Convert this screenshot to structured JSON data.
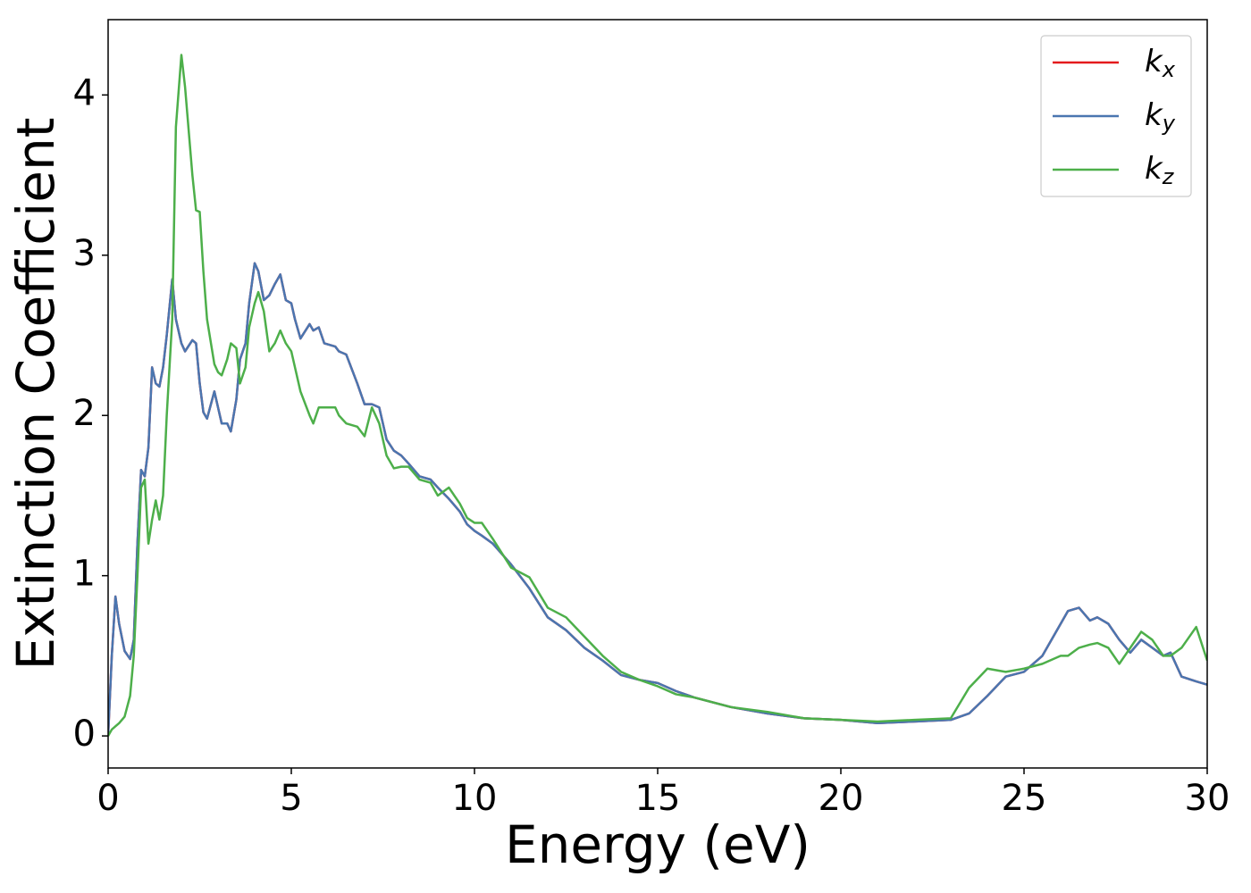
{
  "chart_data": {
    "type": "line",
    "xlabel": "Energy (eV)",
    "ylabel": "Extinction Coefficient",
    "x": [
      0,
      0.1,
      0.2,
      0.3,
      0.45,
      0.6,
      0.7,
      0.8,
      0.9,
      1.0,
      1.1,
      1.2,
      1.3,
      1.4,
      1.5,
      1.6,
      1.75,
      1.85,
      2.0,
      2.1,
      2.3,
      2.4,
      2.5,
      2.6,
      2.7,
      2.9,
      3.0,
      3.1,
      3.25,
      3.35,
      3.5,
      3.6,
      3.75,
      3.85,
      4.0,
      4.1,
      4.25,
      4.4,
      4.55,
      4.7,
      4.85,
      5.0,
      5.1,
      5.25,
      5.5,
      5.6,
      5.75,
      5.9,
      6.2,
      6.3,
      6.5,
      6.8,
      7.0,
      7.2,
      7.4,
      7.6,
      7.8,
      8.0,
      8.2,
      8.5,
      8.8,
      9.0,
      9.3,
      9.6,
      9.8,
      10.0,
      10.2,
      10.5,
      11.0,
      11.5,
      12,
      12.5,
      13,
      13.5,
      14,
      14.5,
      15,
      15.5,
      16,
      17,
      18,
      19,
      20,
      21,
      22,
      23,
      23.5,
      24,
      24.5,
      25,
      25.5,
      26,
      26.2,
      26.5,
      26.8,
      27,
      27.3,
      27.6,
      27.9,
      28.2,
      28.5,
      28.8,
      29,
      29.3,
      29.7,
      30
    ],
    "series": [
      {
        "name": "kx",
        "color": "#e41a1c",
        "values": [
          0,
          0.5,
          0.87,
          0.7,
          0.53,
          0.48,
          0.6,
          1.2,
          1.66,
          1.62,
          1.8,
          2.3,
          2.2,
          2.18,
          2.3,
          2.5,
          2.85,
          2.6,
          2.45,
          2.4,
          2.47,
          2.45,
          2.2,
          2.02,
          1.98,
          2.15,
          2.05,
          1.95,
          1.95,
          1.9,
          2.1,
          2.35,
          2.45,
          2.7,
          2.95,
          2.9,
          2.72,
          2.75,
          2.82,
          2.88,
          2.72,
          2.7,
          2.6,
          2.48,
          2.57,
          2.53,
          2.55,
          2.45,
          2.43,
          2.4,
          2.38,
          2.2,
          2.07,
          2.07,
          2.05,
          1.85,
          1.78,
          1.75,
          1.7,
          1.62,
          1.6,
          1.55,
          1.48,
          1.4,
          1.32,
          1.28,
          1.25,
          1.2,
          1.07,
          0.92,
          0.74,
          0.66,
          0.55,
          0.47,
          0.38,
          0.35,
          0.33,
          0.28,
          0.24,
          0.18,
          0.14,
          0.11,
          0.1,
          0.08,
          0.09,
          0.1,
          0.14,
          0.25,
          0.37,
          0.4,
          0.5,
          0.7,
          0.78,
          0.8,
          0.72,
          0.74,
          0.7,
          0.6,
          0.52,
          0.6,
          0.55,
          0.5,
          0.52,
          0.37,
          0.34,
          0.32
        ]
      },
      {
        "name": "ky",
        "color": "#4a76b0",
        "values": [
          0,
          0.5,
          0.87,
          0.7,
          0.53,
          0.48,
          0.6,
          1.2,
          1.66,
          1.62,
          1.8,
          2.3,
          2.2,
          2.18,
          2.3,
          2.5,
          2.85,
          2.6,
          2.45,
          2.4,
          2.47,
          2.45,
          2.2,
          2.02,
          1.98,
          2.15,
          2.05,
          1.95,
          1.95,
          1.9,
          2.1,
          2.35,
          2.45,
          2.7,
          2.95,
          2.9,
          2.72,
          2.75,
          2.82,
          2.88,
          2.72,
          2.7,
          2.6,
          2.48,
          2.57,
          2.53,
          2.55,
          2.45,
          2.43,
          2.4,
          2.38,
          2.2,
          2.07,
          2.07,
          2.05,
          1.85,
          1.78,
          1.75,
          1.7,
          1.62,
          1.6,
          1.55,
          1.48,
          1.4,
          1.32,
          1.28,
          1.25,
          1.2,
          1.07,
          0.92,
          0.74,
          0.66,
          0.55,
          0.47,
          0.38,
          0.35,
          0.33,
          0.28,
          0.24,
          0.18,
          0.14,
          0.11,
          0.1,
          0.08,
          0.09,
          0.1,
          0.14,
          0.25,
          0.37,
          0.4,
          0.5,
          0.7,
          0.78,
          0.8,
          0.72,
          0.74,
          0.7,
          0.6,
          0.52,
          0.6,
          0.55,
          0.5,
          0.52,
          0.37,
          0.34,
          0.32
        ]
      },
      {
        "name": "kz",
        "color": "#4daf4a",
        "values": [
          0,
          0.04,
          0.06,
          0.08,
          0.12,
          0.25,
          0.5,
          1.0,
          1.55,
          1.6,
          1.2,
          1.35,
          1.47,
          1.35,
          1.5,
          2.0,
          2.6,
          3.8,
          4.25,
          4.05,
          3.5,
          3.28,
          3.27,
          2.9,
          2.6,
          2.32,
          2.27,
          2.25,
          2.35,
          2.45,
          2.42,
          2.2,
          2.3,
          2.55,
          2.7,
          2.77,
          2.65,
          2.4,
          2.45,
          2.53,
          2.45,
          2.4,
          2.3,
          2.15,
          2.0,
          1.95,
          2.05,
          2.05,
          2.05,
          2.0,
          1.95,
          1.93,
          1.87,
          2.05,
          1.95,
          1.75,
          1.67,
          1.68,
          1.68,
          1.6,
          1.58,
          1.5,
          1.55,
          1.45,
          1.36,
          1.33,
          1.33,
          1.23,
          1.05,
          0.99,
          0.8,
          0.74,
          0.62,
          0.5,
          0.4,
          0.35,
          0.31,
          0.26,
          0.24,
          0.18,
          0.15,
          0.11,
          0.1,
          0.09,
          0.1,
          0.11,
          0.3,
          0.42,
          0.4,
          0.42,
          0.45,
          0.5,
          0.5,
          0.55,
          0.57,
          0.58,
          0.55,
          0.45,
          0.55,
          0.65,
          0.6,
          0.5,
          0.5,
          0.55,
          0.68,
          0.47
        ]
      }
    ],
    "xlim": [
      0,
      30
    ],
    "xticks": [
      0,
      5,
      10,
      15,
      20,
      25,
      30
    ],
    "ylim": [
      -0.2,
      4.47
    ],
    "yticks": [
      0,
      1,
      2,
      3,
      4
    ],
    "grid": false,
    "legend": "upper right"
  }
}
